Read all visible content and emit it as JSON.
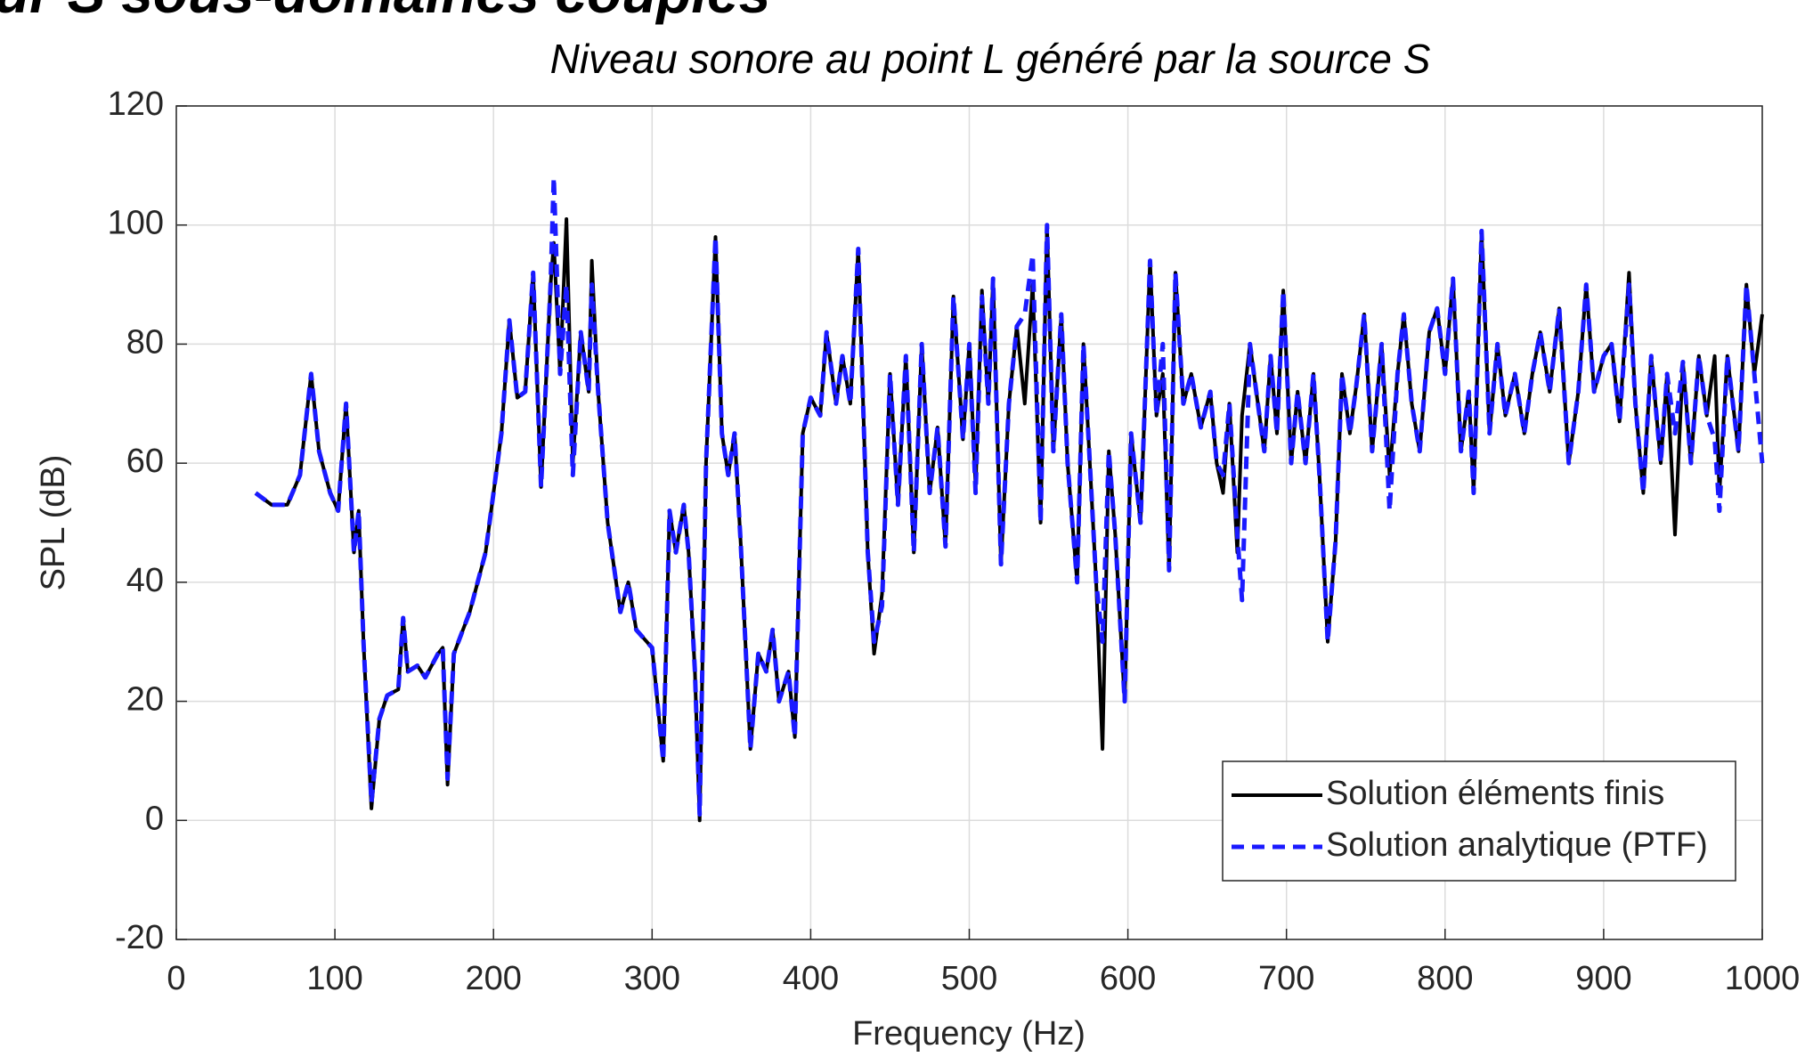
{
  "heading": "ur S sous-domaines couplés",
  "chart_data": {
    "type": "line",
    "title": "Niveau sonore au point L généré par la source S",
    "x_label": "Frequency (Hz)",
    "y_label": "SPL (dB)",
    "xlim": [
      0,
      1000
    ],
    "ylim": [
      -20,
      120
    ],
    "xticks": [
      0,
      100,
      200,
      300,
      400,
      500,
      600,
      700,
      800,
      900,
      1000
    ],
    "yticks": [
      -20,
      0,
      20,
      40,
      60,
      80,
      100,
      120
    ],
    "grid": true,
    "legend": "lower right",
    "x": [
      50,
      60,
      70,
      78,
      85,
      90,
      97,
      102,
      107,
      112,
      115,
      118,
      123,
      128,
      133,
      140,
      143,
      146,
      152,
      157,
      165,
      168,
      171,
      175,
      185,
      195,
      205,
      210,
      215,
      220,
      225,
      230,
      236,
      238,
      242,
      246,
      250,
      255,
      260,
      262,
      266,
      272,
      280,
      285,
      290,
      300,
      307,
      311,
      315,
      320,
      323,
      327,
      330,
      334,
      340,
      344,
      348,
      352,
      356,
      362,
      367,
      372,
      376,
      380,
      386,
      390,
      395,
      400,
      406,
      410,
      416,
      420,
      425,
      430,
      436,
      440,
      445,
      450,
      455,
      460,
      465,
      470,
      475,
      480,
      485,
      490,
      496,
      500,
      504,
      508,
      512,
      515,
      520,
      525,
      530,
      535,
      540,
      545,
      549,
      553,
      558,
      562,
      568,
      572,
      575,
      580,
      584,
      588,
      592,
      598,
      602,
      608,
      614,
      618,
      622,
      626,
      630,
      635,
      640,
      646,
      652,
      656,
      660,
      664,
      669,
      672,
      677,
      682,
      686,
      690,
      694,
      698,
      703,
      707,
      712,
      717,
      721,
      726,
      731,
      735,
      740,
      744,
      749,
      754,
      760,
      765,
      770,
      774,
      779,
      784,
      790,
      795,
      800,
      805,
      810,
      815,
      818,
      823,
      828,
      833,
      838,
      844,
      850,
      855,
      860,
      866,
      872,
      878,
      884,
      889,
      894,
      900,
      905,
      910,
      916,
      920,
      925,
      930,
      936,
      940,
      945,
      950,
      955,
      960,
      965,
      970,
      973,
      978,
      985,
      990,
      995,
      1000
    ],
    "series": [
      {
        "name": "Solution éléments finis",
        "color": "#000000",
        "dash": false,
        "values": [
          55,
          53,
          53,
          58,
          75,
          62,
          55,
          52,
          70,
          45,
          52,
          30,
          2,
          17,
          21,
          22,
          34,
          25,
          26,
          24,
          28,
          29,
          6,
          28,
          35,
          45,
          65,
          84,
          71,
          72,
          92,
          56,
          90,
          97,
          75,
          101,
          60,
          82,
          72,
          94,
          72,
          50,
          35,
          40,
          32,
          29,
          10,
          52,
          45,
          53,
          45,
          25,
          0,
          60,
          98,
          65,
          58,
          65,
          46,
          12,
          28,
          25,
          32,
          20,
          25,
          14,
          65,
          71,
          68,
          82,
          70,
          78,
          70,
          96,
          45,
          28,
          38,
          75,
          53,
          78,
          45,
          80,
          55,
          66,
          46,
          88,
          64,
          80,
          56,
          89,
          70,
          91,
          43,
          70,
          83,
          70,
          90,
          50,
          100,
          62,
          85,
          60,
          40,
          80,
          65,
          40,
          12,
          62,
          48,
          20,
          65,
          50,
          94,
          68,
          75,
          42,
          92,
          70,
          75,
          66,
          72,
          60,
          55,
          70,
          45,
          68,
          80,
          70,
          62,
          78,
          65,
          89,
          60,
          72,
          60,
          75,
          57,
          30,
          47,
          75,
          65,
          73,
          85,
          62,
          80,
          58,
          75,
          85,
          70,
          62,
          82,
          86,
          75,
          91,
          62,
          72,
          55,
          99,
          65,
          80,
          68,
          75,
          65,
          75,
          82,
          72,
          86,
          60,
          72,
          90,
          72,
          78,
          80,
          67,
          92,
          70,
          55,
          78,
          60,
          75,
          48,
          77,
          60,
          78,
          68,
          78,
          55,
          78,
          62,
          90,
          75,
          85
        ]
      },
      {
        "name": "Solution analytique (PTF)",
        "color": "#1a1aff",
        "dash": true,
        "values": [
          55,
          53,
          53,
          58,
          75,
          62,
          55,
          52,
          70,
          45,
          52,
          30,
          3,
          17,
          21,
          22,
          34,
          25,
          26,
          24,
          28,
          29,
          7,
          28,
          35,
          45,
          65,
          84,
          71,
          72,
          92,
          56,
          90,
          108,
          75,
          90,
          58,
          82,
          72,
          90,
          72,
          50,
          35,
          40,
          32,
          29,
          10,
          52,
          45,
          53,
          45,
          25,
          1,
          60,
          98,
          65,
          58,
          65,
          46,
          12,
          28,
          25,
          32,
          20,
          25,
          14,
          65,
          71,
          68,
          82,
          70,
          78,
          70,
          96,
          45,
          30,
          36,
          75,
          53,
          78,
          45,
          80,
          55,
          66,
          46,
          88,
          64,
          80,
          55,
          88,
          70,
          91,
          43,
          70,
          83,
          85,
          95,
          50,
          100,
          62,
          85,
          60,
          40,
          80,
          65,
          40,
          30,
          62,
          48,
          20,
          65,
          50,
          94,
          68,
          80,
          42,
          92,
          70,
          75,
          66,
          72,
          60,
          58,
          70,
          48,
          37,
          80,
          70,
          62,
          78,
          65,
          89,
          60,
          72,
          60,
          75,
          57,
          30,
          47,
          75,
          65,
          73,
          85,
          62,
          80,
          52,
          75,
          85,
          70,
          62,
          82,
          86,
          75,
          91,
          62,
          72,
          55,
          99,
          65,
          80,
          68,
          75,
          65,
          75,
          82,
          72,
          86,
          60,
          72,
          90,
          72,
          78,
          80,
          67,
          90,
          70,
          55,
          78,
          60,
          75,
          65,
          77,
          60,
          78,
          68,
          64,
          52,
          78,
          62,
          90,
          75,
          60
        ]
      }
    ]
  }
}
